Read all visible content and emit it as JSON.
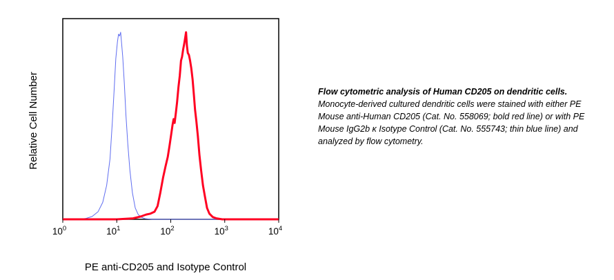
{
  "chart_data": {
    "type": "line",
    "xlabel": "PE anti-CD205 and Isotype Control",
    "ylabel": "Relative Cell Number",
    "x_scale": "log",
    "xlim": [
      1,
      10000
    ],
    "ylim": [
      0,
      1
    ],
    "grid": false,
    "x_tick_labels": [
      {
        "value": 1,
        "base": "10",
        "exp": "0"
      },
      {
        "value": 10,
        "base": "10",
        "exp": "1"
      },
      {
        "value": 100,
        "base": "10",
        "exp": "2"
      },
      {
        "value": 1000,
        "base": "10",
        "exp": "3"
      },
      {
        "value": 10000,
        "base": "10",
        "exp": "4"
      }
    ],
    "series": [
      {
        "color": "#5e6cf0",
        "style": "thin",
        "points": [
          [
            1,
            0.0
          ],
          [
            2.0,
            0.0
          ],
          [
            2.7,
            0.005
          ],
          [
            3.5,
            0.015
          ],
          [
            4.5,
            0.04
          ],
          [
            5.5,
            0.09
          ],
          [
            6.5,
            0.18
          ],
          [
            7.5,
            0.32
          ],
          [
            8.3,
            0.52
          ],
          [
            9.0,
            0.7
          ],
          [
            9.6,
            0.85
          ],
          [
            10.3,
            0.94
          ],
          [
            10.8,
            0.98
          ],
          [
            11.3,
            0.97
          ],
          [
            11.8,
            0.99
          ],
          [
            12.3,
            0.93
          ],
          [
            12.9,
            0.86
          ],
          [
            13.8,
            0.72
          ],
          [
            14.8,
            0.55
          ],
          [
            16.0,
            0.4
          ],
          [
            17.5,
            0.26
          ],
          [
            19.5,
            0.14
          ],
          [
            22,
            0.06
          ],
          [
            25,
            0.025
          ],
          [
            29,
            0.01
          ],
          [
            34,
            0.003
          ],
          [
            45,
            0.0
          ],
          [
            10000,
            0.0
          ]
        ]
      },
      {
        "color": "#ff0022",
        "style": "bold",
        "points": [
          [
            1,
            0.0
          ],
          [
            10,
            0.0
          ],
          [
            20,
            0.005
          ],
          [
            28,
            0.015
          ],
          [
            35,
            0.025
          ],
          [
            42,
            0.03
          ],
          [
            50,
            0.04
          ],
          [
            57,
            0.07
          ],
          [
            64,
            0.14
          ],
          [
            72,
            0.22
          ],
          [
            80,
            0.28
          ],
          [
            88,
            0.33
          ],
          [
            95,
            0.39
          ],
          [
            102,
            0.45
          ],
          [
            108,
            0.5
          ],
          [
            113,
            0.53
          ],
          [
            118,
            0.51
          ],
          [
            124,
            0.56
          ],
          [
            131,
            0.62
          ],
          [
            139,
            0.7
          ],
          [
            147,
            0.76
          ],
          [
            155,
            0.84
          ],
          [
            162,
            0.86
          ],
          [
            170,
            0.9
          ],
          [
            178,
            0.93
          ],
          [
            185,
            0.96
          ],
          [
            192,
            0.99
          ],
          [
            199,
            0.92
          ],
          [
            207,
            0.88
          ],
          [
            217,
            0.87
          ],
          [
            228,
            0.84
          ],
          [
            240,
            0.8
          ],
          [
            254,
            0.74
          ],
          [
            268,
            0.66
          ],
          [
            282,
            0.58
          ],
          [
            298,
            0.52
          ],
          [
            318,
            0.44
          ],
          [
            340,
            0.34
          ],
          [
            365,
            0.26
          ],
          [
            395,
            0.18
          ],
          [
            430,
            0.12
          ],
          [
            470,
            0.06
          ],
          [
            520,
            0.03
          ],
          [
            600,
            0.012
          ],
          [
            700,
            0.005
          ],
          [
            900,
            0.0
          ],
          [
            10000,
            0.0
          ]
        ]
      }
    ]
  },
  "caption": {
    "lead": "Flow cytometric analysis of Human CD205 on dendritic cells.",
    "body": "Monocyte-derived cultured dendritic cells were stained with either PE Mouse anti-Human CD205 (Cat. No. 558069; bold red line) or with PE Mouse IgG2b κ Isotype Control (Cat. No. 555743; thin blue line) and analyzed by flow cytometry."
  }
}
